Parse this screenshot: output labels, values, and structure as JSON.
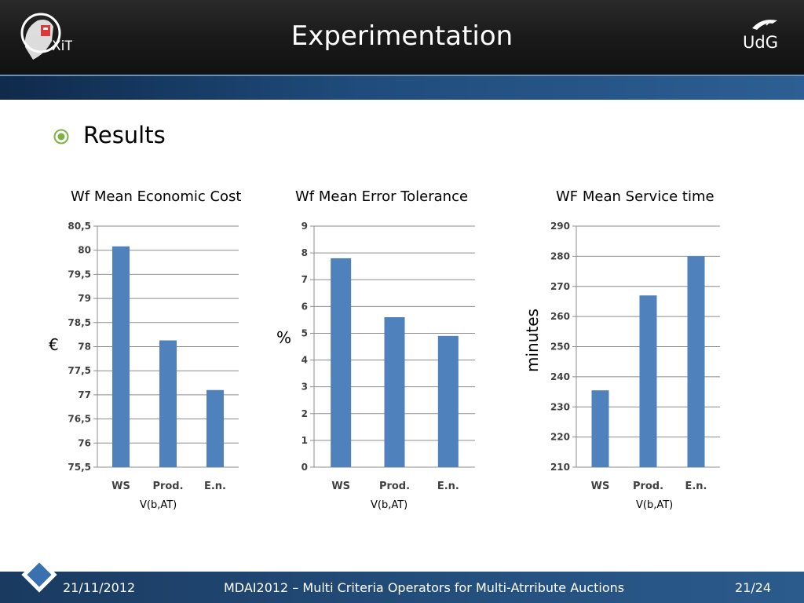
{
  "header": {
    "title": "Experimentation",
    "right_logo_text": "UdG",
    "left_logo_text": "XiT"
  },
  "bullet_heading": "Results",
  "footer": {
    "date": "21/11/2012",
    "center": "MDAI2012 – Multi Criteria Operators for Multi-Atrribute Auctions",
    "page": "21/24"
  },
  "colors": {
    "bar": "#4f81bd",
    "bullet": "#7cb342",
    "band": "#1f4c7c"
  },
  "chart_data": [
    {
      "type": "bar",
      "title": "Wf Mean Economic Cost",
      "ylabel": "€",
      "xlabel": "V(b,AT)",
      "categories": [
        "WS",
        "Prod.",
        "E.n."
      ],
      "values": [
        80.08,
        78.13,
        77.1
      ],
      "ylim": [
        75.5,
        80.5
      ],
      "ticks": [
        "75,5",
        "76",
        "76,5",
        "77",
        "77,5",
        "78",
        "78,5",
        "79",
        "79,5",
        "80",
        "80,5"
      ],
      "grid": true
    },
    {
      "type": "bar",
      "title": "Wf Mean Error Tolerance",
      "ylabel": "%",
      "xlabel": "V(b,AT)",
      "categories": [
        "WS",
        "Prod.",
        "E.n."
      ],
      "values": [
        7.8,
        5.6,
        4.9
      ],
      "ylim": [
        0,
        9
      ],
      "ticks": [
        "0",
        "1",
        "2",
        "3",
        "4",
        "5",
        "6",
        "7",
        "8",
        "9"
      ],
      "grid": true
    },
    {
      "type": "bar",
      "title": "WF Mean Service time",
      "ylabel": "minutes",
      "xlabel": "V(b,AT)",
      "categories": [
        "WS",
        "Prod.",
        "E.n."
      ],
      "values": [
        235.5,
        267,
        280
      ],
      "ylim": [
        210,
        290
      ],
      "ticks": [
        "210",
        "220",
        "230",
        "240",
        "250",
        "260",
        "270",
        "280",
        "290"
      ],
      "grid": true
    }
  ]
}
